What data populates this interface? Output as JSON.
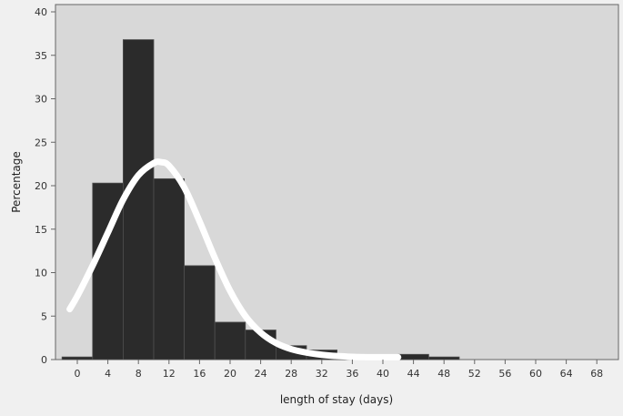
{
  "chart_data": {
    "type": "bar",
    "subtype": "histogram-with-density-curve",
    "xlabel": "length of stay (days)",
    "ylabel": "Percentage",
    "xlim": [
      -2,
      70
    ],
    "ylim": [
      0,
      41
    ],
    "x_ticks": [
      0,
      4,
      8,
      12,
      16,
      20,
      24,
      28,
      32,
      36,
      40,
      44,
      48,
      52,
      56,
      60,
      64,
      68
    ],
    "y_ticks": [
      0,
      5,
      10,
      15,
      20,
      25,
      30,
      35,
      40
    ],
    "bin_width": 4,
    "bins": [
      {
        "start": -2,
        "value": 0.3
      },
      {
        "start": 2,
        "value": 20.3
      },
      {
        "start": 6,
        "value": 36.8
      },
      {
        "start": 10,
        "value": 20.8
      },
      {
        "start": 14,
        "value": 10.8
      },
      {
        "start": 18,
        "value": 4.3
      },
      {
        "start": 22,
        "value": 3.4
      },
      {
        "start": 26,
        "value": 1.6
      },
      {
        "start": 30,
        "value": 1.1
      },
      {
        "start": 34,
        "value": 0.2
      },
      {
        "start": 38,
        "value": 0.2
      },
      {
        "start": 42,
        "value": 0.6
      },
      {
        "start": 46,
        "value": 0.3
      }
    ],
    "density_curve": {
      "x": [
        -1,
        0,
        2,
        4,
        6,
        8,
        10,
        11,
        12,
        14,
        16,
        18,
        20,
        22,
        24,
        26,
        28,
        30,
        32,
        34,
        36,
        38,
        40,
        42
      ],
      "y": [
        5.8,
        7.3,
        10.8,
        14.6,
        18.4,
        21.2,
        22.6,
        22.7,
        22.3,
        19.8,
        15.9,
        11.7,
        7.9,
        5.0,
        3.1,
        1.9,
        1.2,
        0.8,
        0.55,
        0.4,
        0.32,
        0.28,
        0.27,
        0.27
      ]
    },
    "grid": false,
    "legend": "none",
    "colors": {
      "bar_fill": "#2b2b2b",
      "bar_edge": "#505050",
      "curve": "#ffffff",
      "plot_background": "#d8d8d8",
      "page_background": "#f0f0f0",
      "axis": "#666666"
    }
  }
}
